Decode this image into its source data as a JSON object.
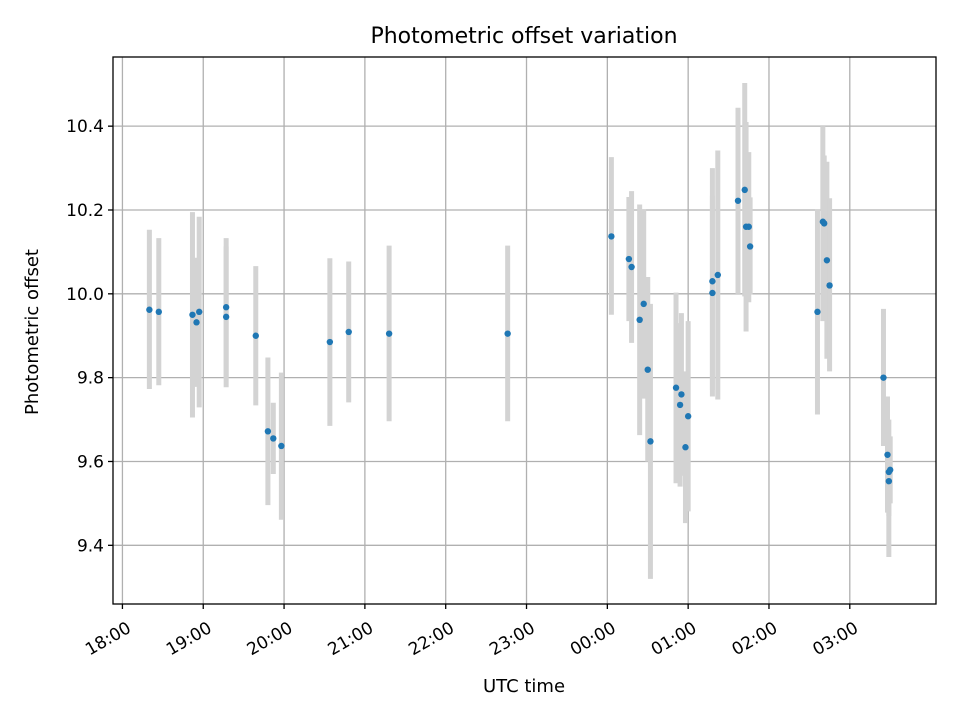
{
  "chart_data": {
    "type": "scatter",
    "title": "Photometric offset variation",
    "xlabel": "UTC time",
    "ylabel": "Photometric offset",
    "x_unit": "time (UTC)",
    "xlim": [
      "17:53",
      "04:04 +1d"
    ],
    "ylim": [
      9.26,
      10.565
    ],
    "x_ticks": [
      "18:00",
      "19:00",
      "20:00",
      "21:00",
      "22:00",
      "23:00",
      "00:00",
      "01:00",
      "02:00",
      "03:00"
    ],
    "y_ticks": [
      9.4,
      9.6,
      9.8,
      10.0,
      10.2,
      10.4
    ],
    "y_tick_labels": [
      "9.4",
      "9.6",
      "9.8",
      "10.0",
      "10.2",
      "10.4"
    ],
    "grid": true,
    "colors": {
      "point": "#1f77b4",
      "errorbar": "#d3d3d3",
      "grid": "#b0b0b0"
    },
    "points": [
      {
        "t": "18:20",
        "y": 9.962,
        "lo": 9.773,
        "hi": 10.153
      },
      {
        "t": "18:27",
        "y": 9.957,
        "lo": 9.782,
        "hi": 10.133
      },
      {
        "t": "18:52",
        "y": 9.95,
        "lo": 9.705,
        "hi": 10.195
      },
      {
        "t": "18:55",
        "y": 9.932,
        "lo": 9.778,
        "hi": 10.086
      },
      {
        "t": "18:57",
        "y": 9.957,
        "lo": 9.729,
        "hi": 10.184
      },
      {
        "t": "19:17",
        "y": 9.968,
        "lo": 9.8,
        "hi": 10.133
      },
      {
        "t": "19:17",
        "y": 9.945,
        "lo": 9.777,
        "hi": 10.113
      },
      {
        "t": "19:39",
        "y": 9.9,
        "lo": 9.734,
        "hi": 10.066
      },
      {
        "t": "19:48",
        "y": 9.672,
        "lo": 9.496,
        "hi": 9.848
      },
      {
        "t": "19:52",
        "y": 9.655,
        "lo": 9.57,
        "hi": 9.74
      },
      {
        "t": "19:58",
        "y": 9.637,
        "lo": 9.461,
        "hi": 9.812
      },
      {
        "t": "20:34",
        "y": 9.885,
        "lo": 9.685,
        "hi": 10.085
      },
      {
        "t": "20:48",
        "y": 9.909,
        "lo": 9.741,
        "hi": 10.077
      },
      {
        "t": "21:18",
        "y": 9.905,
        "lo": 9.696,
        "hi": 10.115
      },
      {
        "t": "22:46",
        "y": 9.905,
        "lo": 9.696,
        "hi": 10.115
      },
      {
        "t": "00:03 +1d",
        "y": 10.137,
        "lo": 9.95,
        "hi": 10.326
      },
      {
        "t": "00:16 +1d",
        "y": 10.083,
        "lo": 9.935,
        "hi": 10.231
      },
      {
        "t": "00:18 +1d",
        "y": 10.064,
        "lo": 9.883,
        "hi": 10.245
      },
      {
        "t": "00:24 +1d",
        "y": 9.938,
        "lo": 9.663,
        "hi": 10.213
      },
      {
        "t": "00:27 +1d",
        "y": 9.976,
        "lo": 9.75,
        "hi": 10.202
      },
      {
        "t": "00:30 +1d",
        "y": 9.819,
        "lo": 9.6,
        "hi": 10.04
      },
      {
        "t": "00:32 +1d",
        "y": 9.648,
        "lo": 9.32,
        "hi": 9.976
      },
      {
        "t": "00:51 +1d",
        "y": 9.776,
        "lo": 9.548,
        "hi": 10.003
      },
      {
        "t": "00:54 +1d",
        "y": 9.735,
        "lo": 9.54,
        "hi": 9.93
      },
      {
        "t": "00:55 +1d",
        "y": 9.76,
        "lo": 9.566,
        "hi": 9.954
      },
      {
        "t": "00:58 +1d",
        "y": 9.634,
        "lo": 9.453,
        "hi": 9.815
      },
      {
        "t": "01:00 +1d",
        "y": 9.708,
        "lo": 9.481,
        "hi": 9.935
      },
      {
        "t": "01:18 +1d",
        "y": 10.03,
        "lo": 9.755,
        "hi": 10.3
      },
      {
        "t": "01:18 +1d",
        "y": 10.002,
        "lo": 9.771,
        "hi": 10.234
      },
      {
        "t": "01:22 +1d",
        "y": 10.045,
        "lo": 9.748,
        "hi": 10.342
      },
      {
        "t": "01:37 +1d",
        "y": 10.222,
        "lo": 10.0,
        "hi": 10.444
      },
      {
        "t": "01:42 +1d",
        "y": 10.248,
        "lo": 9.994,
        "hi": 10.503
      },
      {
        "t": "01:43 +1d",
        "y": 10.16,
        "lo": 9.91,
        "hi": 10.41
      },
      {
        "t": "01:45 +1d",
        "y": 10.16,
        "lo": 9.98,
        "hi": 10.338
      },
      {
        "t": "01:46 +1d",
        "y": 10.113,
        "lo": 9.998,
        "hi": 10.23
      },
      {
        "t": "02:36 +1d",
        "y": 9.957,
        "lo": 9.712,
        "hi": 10.202
      },
      {
        "t": "02:40 +1d",
        "y": 10.172,
        "lo": 9.935,
        "hi": 10.4
      },
      {
        "t": "02:41 +1d",
        "y": 10.168,
        "lo": 10.01,
        "hi": 10.33
      },
      {
        "t": "02:43 +1d",
        "y": 10.08,
        "lo": 9.845,
        "hi": 10.315
      },
      {
        "t": "02:45 +1d",
        "y": 10.02,
        "lo": 9.815,
        "hi": 10.228
      },
      {
        "t": "03:25 +1d",
        "y": 9.8,
        "lo": 9.637,
        "hi": 9.964
      },
      {
        "t": "03:28 +1d",
        "y": 9.616,
        "lo": 9.478,
        "hi": 9.755
      },
      {
        "t": "03:29 +1d",
        "y": 9.575,
        "lo": 9.372,
        "hi": 9.7
      },
      {
        "t": "03:29 +1d",
        "y": 9.553,
        "lo": 9.47,
        "hi": 9.64
      },
      {
        "t": "03:30 +1d",
        "y": 9.58,
        "lo": 9.5,
        "hi": 9.66
      }
    ]
  }
}
